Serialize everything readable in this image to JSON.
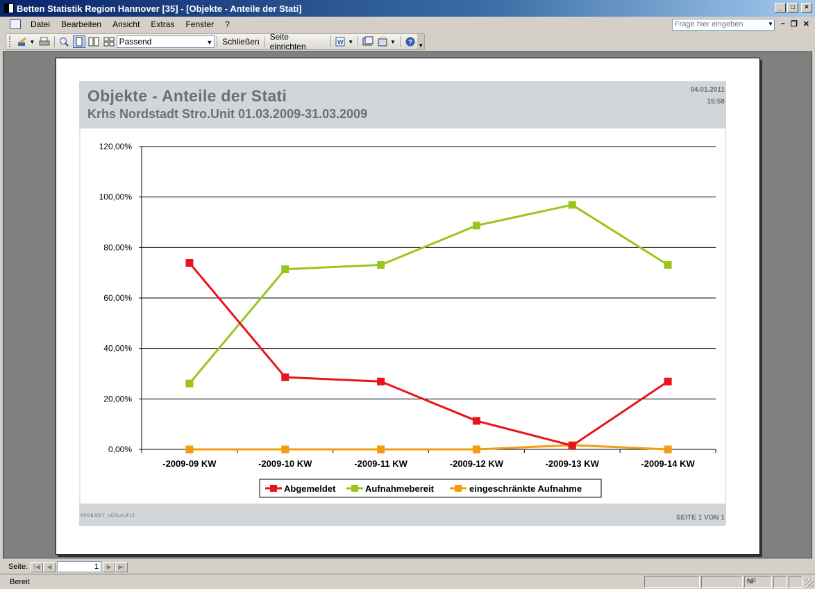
{
  "window": {
    "title": "Betten Statistik Region Hannover [35] - [Objekte - Anteile der Stati]"
  },
  "menu": {
    "items": [
      "Datei",
      "Bearbeiten",
      "Ansicht",
      "Extras",
      "Fenster",
      "?"
    ],
    "help_placeholder": "Frage hier eingeben"
  },
  "toolbar": {
    "zoom_value": "Passend",
    "close_label": "Schließen",
    "page_setup_label": "Seite einrichten"
  },
  "report": {
    "title": "Objekte - Anteile der Stati",
    "subtitle": "Krhs Nordstadt Stro.Unit 01.03.2009-31.03.2009",
    "date": "04.01.2011",
    "time": "15:58",
    "code": "RPOBJEKT_VERLAUF12",
    "page_text": "SEITE 1 VON 1"
  },
  "chart_data": {
    "type": "line",
    "categories": [
      "-2009-09 KW",
      "-2009-10 KW",
      "-2009-11 KW",
      "-2009-12 KW",
      "-2009-13 KW",
      "-2009-14 KW"
    ],
    "y_tick_labels": [
      "0,00%",
      "20,00%",
      "40,00%",
      "60,00%",
      "80,00%",
      "100,00%",
      "120,00%"
    ],
    "ylim": [
      0,
      120
    ],
    "grid": true,
    "legend_position": "bottom",
    "series": [
      {
        "name": "Abgemeldet",
        "color": "#e8141b",
        "values": [
          73.9,
          28.6,
          26.9,
          11.3,
          1.5,
          26.9
        ]
      },
      {
        "name": "Aufnahmebereit",
        "color": "#9ac61c",
        "values": [
          26.1,
          71.4,
          73.1,
          88.7,
          96.9,
          73.1
        ]
      },
      {
        "name": "eingeschränkte Aufnahme",
        "color": "#f39c12",
        "values": [
          0,
          0,
          0,
          0,
          1.7,
          0
        ]
      }
    ]
  },
  "navigation": {
    "label": "Seite:",
    "page_value": "1"
  },
  "status": {
    "text": "Bereit",
    "nf": "NF"
  }
}
